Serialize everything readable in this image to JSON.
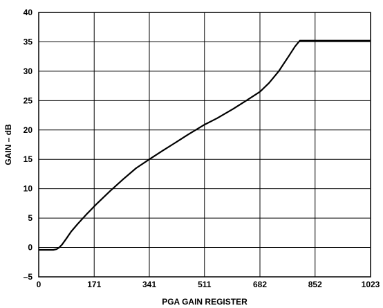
{
  "chart_data": {
    "type": "line",
    "title": "",
    "xlabel": "PGA GAIN REGISTER",
    "ylabel": "GAIN – dB",
    "xlim": [
      0,
      1023
    ],
    "ylim": [
      -5,
      40
    ],
    "grid": true,
    "x_ticks": [
      0,
      171,
      341,
      511,
      682,
      852,
      1023
    ],
    "x_tick_labels": [
      "0",
      "171",
      "341",
      "511",
      "682",
      "852",
      "1023"
    ],
    "y_ticks": [
      -5,
      0,
      5,
      10,
      15,
      20,
      25,
      30,
      35,
      40
    ],
    "y_tick_labels": [
      "–5",
      "0",
      "5",
      "10",
      "15",
      "20",
      "25",
      "30",
      "35",
      "40"
    ],
    "series": [
      {
        "x": [
          0,
          45,
          55,
          63,
          72,
          85,
          100,
          120,
          150,
          180,
          220,
          260,
          300,
          341,
          380,
          420,
          460,
          511,
          550,
          600,
          640,
          682,
          710,
          740,
          770,
          790,
          805,
          852,
          900,
          950,
          1023
        ],
        "y": [
          -0.4,
          -0.4,
          -0.3,
          0.0,
          0.5,
          1.5,
          2.7,
          4.0,
          5.8,
          7.5,
          9.6,
          11.6,
          13.5,
          15.0,
          16.4,
          17.8,
          19.2,
          20.9,
          22.0,
          23.6,
          25.0,
          26.5,
          28.0,
          30.0,
          32.5,
          34.2,
          35.2,
          35.2,
          35.2,
          35.2,
          35.2
        ],
        "color": "#000000"
      }
    ]
  }
}
